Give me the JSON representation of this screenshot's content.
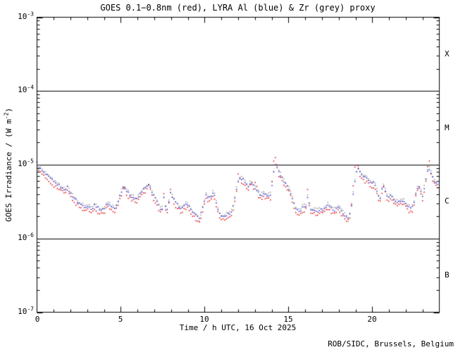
{
  "footer": {
    "credit": "ROB/SIDC, Brussels, Belgium"
  },
  "colors": {
    "background": "#ffffff",
    "axis": "#000000",
    "red": "#e00000",
    "blue": "#2222cc",
    "grey": "#9a9a9a"
  },
  "chart_data": {
    "type": "scatter",
    "title": "GOES 0.1−0.8nm (red), LYRA Al (blue) & Zr (grey) proxy",
    "xlabel": "Time / h UTC, 16 Oct 2025",
    "ylabel_parts": [
      {
        "text": "GOES Irradiance / (W m"
      },
      {
        "sup": "-2"
      },
      {
        "text": ")"
      }
    ],
    "x_axis": {
      "range_hours": [
        0,
        24
      ],
      "tick_values": [
        0,
        5,
        10,
        15,
        20
      ],
      "tick_labels": [
        "0",
        "5",
        "10",
        "15",
        "20"
      ],
      "minor_step_hours": 1
    },
    "y_axis": {
      "scale": "log10",
      "units": "W m^-2",
      "tick_base": "10",
      "tick_exponents": [
        -3,
        -4,
        -5,
        -6,
        -7
      ],
      "hline_exponents": [
        -4,
        -5,
        -6
      ],
      "range_exponents": [
        -7,
        -3
      ]
    },
    "right_axis": {
      "labels": [
        "X",
        "M",
        "C",
        "B"
      ],
      "mid_exponents": [
        -3.5,
        -4.5,
        -5.5,
        -6.5
      ]
    },
    "grid": "off",
    "legend": "in title",
    "hours": [
      0.0,
      0.1,
      0.2,
      0.35,
      0.5,
      0.65,
      0.8,
      0.95,
      1.1,
      1.25,
      1.4,
      1.55,
      1.7,
      1.8,
      1.95,
      2.1,
      2.25,
      2.4,
      2.55,
      2.7,
      2.85,
      3.0,
      3.15,
      3.3,
      3.45,
      3.6,
      3.75,
      3.9,
      4.05,
      4.2,
      4.35,
      4.5,
      4.65,
      4.8,
      4.95,
      5.1,
      5.2,
      5.35,
      5.5,
      5.65,
      5.8,
      5.95,
      6.1,
      6.25,
      6.4,
      6.55,
      6.7,
      6.85,
      7.0,
      7.15,
      7.3,
      7.45,
      7.55,
      7.65,
      7.8,
      7.95,
      8.1,
      8.25,
      8.4,
      8.55,
      8.7,
      8.85,
      8.95,
      9.1,
      9.25,
      9.4,
      9.55,
      9.7,
      9.85,
      10.0,
      10.1,
      10.25,
      10.4,
      10.55,
      10.7,
      10.85,
      11.0,
      11.15,
      11.3,
      11.45,
      11.6,
      11.75,
      11.9,
      12.0,
      12.15,
      12.3,
      12.45,
      12.6,
      12.75,
      12.9,
      13.05,
      13.2,
      13.35,
      13.5,
      13.65,
      13.8,
      13.95,
      14.1,
      14.25,
      14.4,
      14.55,
      14.7,
      14.85,
      15.0,
      15.15,
      15.3,
      15.45,
      15.6,
      15.75,
      15.9,
      16.0,
      16.15,
      16.3,
      16.45,
      16.6,
      16.75,
      16.9,
      17.05,
      17.2,
      17.35,
      17.5,
      17.65,
      17.8,
      17.95,
      18.1,
      18.25,
      18.4,
      18.55,
      18.7,
      18.85,
      19.0,
      19.15,
      19.3,
      19.45,
      19.6,
      19.75,
      19.9,
      20.05,
      20.15,
      20.3,
      20.45,
      20.6,
      20.7,
      20.85,
      20.95,
      21.1,
      21.25,
      21.4,
      21.55,
      21.7,
      21.85,
      22.0,
      22.15,
      22.3,
      22.45,
      22.6,
      22.75,
      22.9,
      23.0,
      23.15,
      23.3,
      23.4,
      23.55,
      23.7,
      23.85,
      24.0
    ],
    "series": [
      {
        "name": "GOES 0.1-0.8nm",
        "color_key": "red",
        "log10_irradiance": [
          -4.94,
          -5.07,
          -5.11,
          -5.15,
          -5.18,
          -5.21,
          -5.24,
          -5.27,
          -5.3,
          -5.32,
          -5.35,
          -5.38,
          -5.38,
          -5.35,
          -5.42,
          -5.47,
          -5.51,
          -5.55,
          -5.58,
          -5.6,
          -5.62,
          -5.61,
          -5.63,
          -5.65,
          -5.59,
          -5.63,
          -5.65,
          -5.67,
          -5.63,
          -5.57,
          -5.6,
          -5.63,
          -5.65,
          -5.57,
          -5.47,
          -5.37,
          -5.26,
          -5.41,
          -5.45,
          -5.48,
          -5.5,
          -5.52,
          -5.47,
          -5.41,
          -5.38,
          -5.35,
          -5.27,
          -5.41,
          -5.48,
          -5.55,
          -5.62,
          -5.67,
          -5.37,
          -5.6,
          -5.68,
          -5.33,
          -5.5,
          -5.56,
          -5.6,
          -5.63,
          -5.64,
          -5.6,
          -5.57,
          -5.63,
          -5.68,
          -5.72,
          -5.75,
          -5.77,
          -5.66,
          -5.53,
          -5.46,
          -5.5,
          -5.47,
          -5.42,
          -5.57,
          -5.7,
          -5.75,
          -5.74,
          -5.73,
          -5.72,
          -5.69,
          -5.57,
          -5.38,
          -5.1,
          -5.22,
          -5.25,
          -5.29,
          -5.35,
          -5.22,
          -5.33,
          -5.21,
          -5.43,
          -5.47,
          -5.45,
          -5.46,
          -5.47,
          -5.45,
          -4.97,
          -4.86,
          -5.13,
          -5.2,
          -5.26,
          -5.31,
          -5.36,
          -5.45,
          -5.55,
          -5.64,
          -5.68,
          -5.67,
          -5.6,
          -5.65,
          -5.34,
          -5.65,
          -5.67,
          -5.66,
          -5.68,
          -5.65,
          -5.67,
          -5.64,
          -5.59,
          -5.63,
          -5.66,
          -5.67,
          -5.62,
          -5.66,
          -5.7,
          -5.74,
          -5.77,
          -5.71,
          -5.32,
          -4.96,
          -5.07,
          -5.16,
          -5.22,
          -5.23,
          -5.26,
          -5.29,
          -5.29,
          -5.31,
          -5.43,
          -5.53,
          -5.37,
          -5.24,
          -5.47,
          -5.51,
          -5.47,
          -5.51,
          -5.54,
          -5.56,
          -5.53,
          -5.54,
          -5.58,
          -5.62,
          -5.65,
          -5.6,
          -5.43,
          -5.27,
          -5.41,
          -5.47,
          -5.31,
          -5.03,
          -4.96,
          -5.19,
          -5.26,
          -5.31,
          -5.31
        ]
      },
      {
        "name": "LYRA Al proxy",
        "color_key": "blue",
        "log10_irradiance": [
          -4.97,
          -5.02,
          -5.06,
          -5.1,
          -5.13,
          -5.16,
          -5.19,
          -5.22,
          -5.25,
          -5.27,
          -5.3,
          -5.33,
          -5.33,
          -5.3,
          -5.37,
          -5.42,
          -5.46,
          -5.5,
          -5.53,
          -5.55,
          -5.57,
          -5.56,
          -5.58,
          -5.6,
          -5.54,
          -5.58,
          -5.6,
          -5.62,
          -5.58,
          -5.52,
          -5.55,
          -5.58,
          -5.6,
          -5.52,
          -5.42,
          -5.32,
          -5.29,
          -5.36,
          -5.4,
          -5.43,
          -5.45,
          -5.47,
          -5.42,
          -5.36,
          -5.33,
          -5.3,
          -5.28,
          -5.36,
          -5.43,
          -5.5,
          -5.57,
          -5.62,
          -5.43,
          -5.55,
          -5.63,
          -5.38,
          -5.45,
          -5.51,
          -5.55,
          -5.58,
          -5.59,
          -5.55,
          -5.52,
          -5.58,
          -5.63,
          -5.67,
          -5.7,
          -5.72,
          -5.61,
          -5.48,
          -5.41,
          -5.45,
          -5.42,
          -5.37,
          -5.52,
          -5.65,
          -5.7,
          -5.69,
          -5.68,
          -5.67,
          -5.64,
          -5.52,
          -5.33,
          -5.23,
          -5.18,
          -5.2,
          -5.24,
          -5.3,
          -5.24,
          -5.28,
          -5.34,
          -5.38,
          -5.42,
          -5.4,
          -5.41,
          -5.42,
          -5.4,
          -5.12,
          -4.99,
          -5.08,
          -5.15,
          -5.21,
          -5.26,
          -5.31,
          -5.4,
          -5.5,
          -5.59,
          -5.63,
          -5.62,
          -5.55,
          -5.6,
          -5.42,
          -5.6,
          -5.62,
          -5.61,
          -5.63,
          -5.6,
          -5.62,
          -5.59,
          -5.54,
          -5.58,
          -5.61,
          -5.62,
          -5.57,
          -5.61,
          -5.65,
          -5.69,
          -5.72,
          -5.66,
          -5.42,
          -5.16,
          -5.04,
          -5.11,
          -5.17,
          -5.18,
          -5.21,
          -5.24,
          -5.24,
          -5.26,
          -5.38,
          -5.48,
          -5.32,
          -5.29,
          -5.42,
          -5.46,
          -5.42,
          -5.46,
          -5.49,
          -5.51,
          -5.48,
          -5.49,
          -5.53,
          -5.57,
          -5.6,
          -5.55,
          -5.38,
          -5.29,
          -5.36,
          -5.42,
          -5.26,
          -5.1,
          -5.06,
          -5.14,
          -5.21,
          -5.26,
          -5.26
        ]
      },
      {
        "name": "LYRA Zr proxy",
        "color_key": "grey",
        "log10_irradiance": [
          -4.95,
          -5.0,
          -5.04,
          -5.08,
          -5.11,
          -5.14,
          -5.17,
          -5.2,
          -5.23,
          -5.25,
          -5.28,
          -5.31,
          -5.31,
          -5.28,
          -5.35,
          -5.4,
          -5.44,
          -5.48,
          -5.51,
          -5.53,
          -5.55,
          -5.54,
          -5.56,
          -5.58,
          -5.52,
          -5.56,
          -5.58,
          -5.6,
          -5.56,
          -5.5,
          -5.53,
          -5.56,
          -5.58,
          -5.5,
          -5.4,
          -5.3,
          -5.27,
          -5.34,
          -5.38,
          -5.41,
          -5.43,
          -5.45,
          -5.4,
          -5.34,
          -5.31,
          -5.28,
          -5.26,
          -5.34,
          -5.41,
          -5.48,
          -5.55,
          -5.6,
          -5.41,
          -5.53,
          -5.61,
          -5.36,
          -5.43,
          -5.49,
          -5.53,
          -5.56,
          -5.57,
          -5.53,
          -5.5,
          -5.56,
          -5.61,
          -5.65,
          -5.68,
          -5.76,
          -5.59,
          -5.46,
          -5.39,
          -5.43,
          -5.4,
          -5.35,
          -5.5,
          -5.63,
          -5.68,
          -5.67,
          -5.66,
          -5.65,
          -5.62,
          -5.5,
          -5.31,
          -5.21,
          -5.16,
          -5.18,
          -5.22,
          -5.28,
          -5.22,
          -5.26,
          -5.32,
          -5.36,
          -5.4,
          -5.38,
          -5.39,
          -5.4,
          -5.38,
          -5.1,
          -4.97,
          -5.06,
          -5.13,
          -5.19,
          -5.24,
          -5.29,
          -5.38,
          -5.48,
          -5.57,
          -5.61,
          -5.6,
          -5.53,
          -5.58,
          -5.4,
          -5.58,
          -5.6,
          -5.59,
          -5.61,
          -5.58,
          -5.6,
          -5.57,
          -5.52,
          -5.56,
          -5.59,
          -5.6,
          -5.55,
          -5.59,
          -5.63,
          -5.67,
          -5.76,
          -5.64,
          -5.4,
          -5.14,
          -5.02,
          -5.09,
          -5.15,
          -5.16,
          -5.19,
          -5.22,
          -5.22,
          -5.24,
          -5.36,
          -5.46,
          -5.3,
          -5.27,
          -5.4,
          -5.44,
          -5.4,
          -5.44,
          -5.47,
          -5.49,
          -5.46,
          -5.47,
          -5.51,
          -5.55,
          -5.58,
          -5.53,
          -5.36,
          -5.26,
          -5.34,
          -5.4,
          -5.24,
          -5.08,
          -5.04,
          -5.12,
          -5.19,
          -5.24,
          -5.24
        ]
      }
    ]
  }
}
